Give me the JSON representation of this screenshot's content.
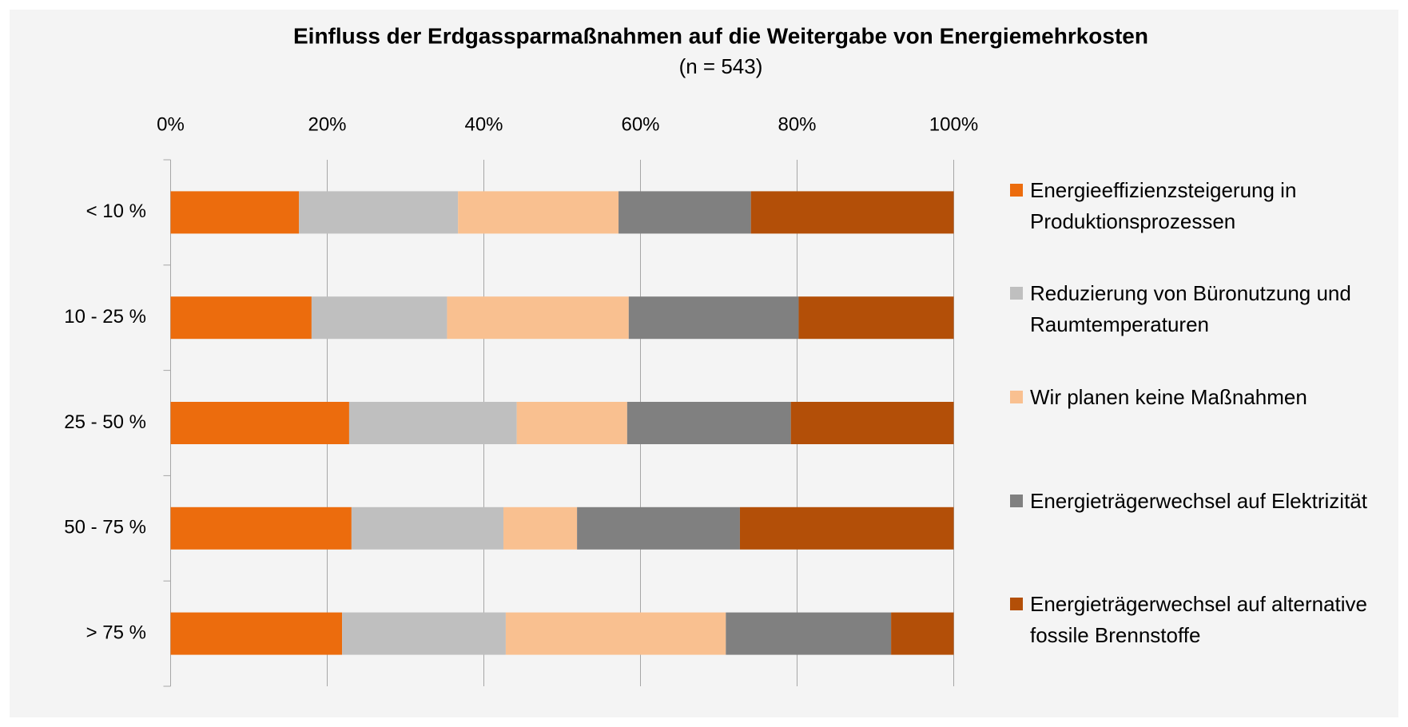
{
  "chart_data": {
    "type": "stacked_barh",
    "title": "Einfluss der Erdgassparmaßnahmen auf die Weitergabe von Energiemehrkosten",
    "subtitle": "(n = 543)",
    "categories": [
      "< 10 %",
      "10 - 25 %",
      "25 - 50 %",
      "50 - 75 %",
      "> 75 %"
    ],
    "series": [
      {
        "name": "Energieeffizienzsteigerung in Produktionsprozessen",
        "color": "#ec6c0d",
        "values": [
          16.4,
          18.0,
          22.8,
          23.1,
          21.9
        ]
      },
      {
        "name": "Reduzierung von Büronutzung und Raumtemperaturen",
        "color": "#bfbfbf",
        "values": [
          20.3,
          17.3,
          21.4,
          19.4,
          20.9
        ]
      },
      {
        "name": "Wir planen keine Maßnahmen",
        "color": "#f9c090",
        "values": [
          20.5,
          23.2,
          14.1,
          9.4,
          28.1
        ]
      },
      {
        "name": "Energieträgerwechsel auf Elektrizität",
        "color": "#808080",
        "values": [
          16.9,
          21.7,
          20.9,
          20.8,
          21.1
        ]
      },
      {
        "name": "Energieträgerwechsel auf alternative fossile Brennstoffe",
        "color": "#b34f08",
        "values": [
          25.9,
          19.8,
          20.8,
          27.3,
          8.0
        ]
      }
    ],
    "xlim": [
      0,
      100
    ],
    "xticks": [
      {
        "value": 0,
        "label": "0%"
      },
      {
        "value": 20,
        "label": "20%"
      },
      {
        "value": 40,
        "label": "40%"
      },
      {
        "value": 60,
        "label": "60%"
      },
      {
        "value": 80,
        "label": "80%"
      },
      {
        "value": 100,
        "label": "100%"
      }
    ],
    "grid": true,
    "legend": "right"
  }
}
